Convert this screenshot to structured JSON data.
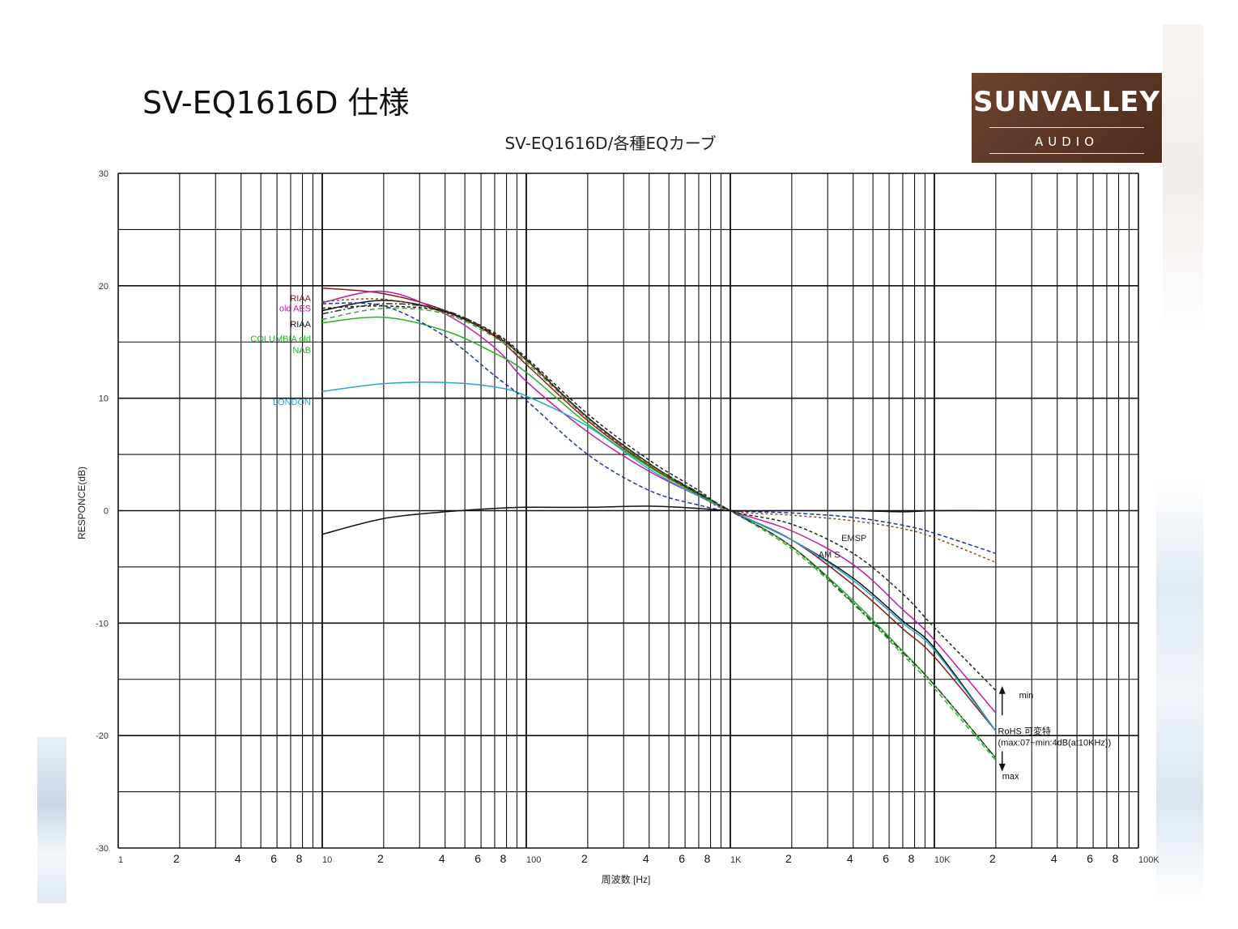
{
  "page_title": "SV-EQ1616D 仕様",
  "logo": {
    "main": "SUNVALLEY",
    "sub": "AUDIO"
  },
  "chart_data": {
    "type": "line",
    "title": "SV-EQ1616D/各種EQカーブ",
    "xlabel": "周波数 [Hz]",
    "ylabel": "RESPONCE(dB)",
    "xscale": "log",
    "xlim": [
      1,
      100000
    ],
    "ylim": [
      -30,
      30
    ],
    "grid": true,
    "y_ticks": [
      "30",
      "20",
      "10",
      "0",
      "-10",
      "-20",
      "-30"
    ],
    "y_tick_values": [
      30,
      20,
      10,
      0,
      -10,
      -20,
      -30
    ],
    "x_ticks": [
      {
        "v": 1,
        "label": "1",
        "dec": true
      },
      {
        "v": 2,
        "label": "2",
        "dec": false
      },
      {
        "v": 4,
        "label": "4",
        "dec": false
      },
      {
        "v": 6,
        "label": "6",
        "dec": false
      },
      {
        "v": 8,
        "label": "8",
        "dec": false
      },
      {
        "v": 10,
        "label": "10",
        "dec": true
      },
      {
        "v": 20,
        "label": "2",
        "dec": false
      },
      {
        "v": 40,
        "label": "4",
        "dec": false
      },
      {
        "v": 60,
        "label": "6",
        "dec": false
      },
      {
        "v": 80,
        "label": "8",
        "dec": false
      },
      {
        "v": 100,
        "label": "100",
        "dec": true
      },
      {
        "v": 200,
        "label": "2",
        "dec": false
      },
      {
        "v": 400,
        "label": "4",
        "dec": false
      },
      {
        "v": 600,
        "label": "6",
        "dec": false
      },
      {
        "v": 800,
        "label": "8",
        "dec": false
      },
      {
        "v": 1000,
        "label": "1K",
        "dec": true
      },
      {
        "v": 2000,
        "label": "2",
        "dec": false
      },
      {
        "v": 4000,
        "label": "4",
        "dec": false
      },
      {
        "v": 6000,
        "label": "6",
        "dec": false
      },
      {
        "v": 8000,
        "label": "8",
        "dec": false
      },
      {
        "v": 10000,
        "label": "10K",
        "dec": true
      },
      {
        "v": 20000,
        "label": "2",
        "dec": false
      },
      {
        "v": 40000,
        "label": "4",
        "dec": false
      },
      {
        "v": 60000,
        "label": "6",
        "dec": false
      },
      {
        "v": 80000,
        "label": "8",
        "dec": false
      },
      {
        "v": 100000,
        "label": "100K",
        "dec": true
      }
    ],
    "series": [
      {
        "name": "RIAA",
        "color": "#8b1a1a",
        "dash": "",
        "x": [
          10,
          20,
          40,
          70,
          100,
          200,
          400,
          700,
          1000,
          2000,
          4000,
          7000,
          10000,
          20000
        ],
        "y": [
          19.8,
          19.3,
          17.8,
          15.5,
          13.0,
          8.0,
          4.0,
          1.5,
          0.0,
          -2.6,
          -6.6,
          -10.5,
          -13.0,
          -19.6
        ]
      },
      {
        "name": "old AES",
        "color": "#c01ca0",
        "dash": "",
        "x": [
          10,
          20,
          40,
          70,
          100,
          200,
          400,
          700,
          1000,
          2000,
          4000,
          7000,
          10000,
          20000
        ],
        "y": [
          18.5,
          19.5,
          17.5,
          14.5,
          11.5,
          7.0,
          3.5,
          1.3,
          0.0,
          -1.8,
          -4.8,
          -8.8,
          -11.5,
          -18.0
        ]
      },
      {
        "name": "RIAA",
        "color": "#111111",
        "dash": "",
        "x": [
          10,
          20,
          40,
          70,
          100,
          200,
          400,
          700,
          1000,
          2000,
          4000,
          7000,
          10000,
          20000
        ],
        "y": [
          17.8,
          18.7,
          17.7,
          15.6,
          13.4,
          8.3,
          4.2,
          1.5,
          0.0,
          -2.6,
          -6.0,
          -9.8,
          -12.2,
          -19.6
        ]
      },
      {
        "name": "COLUMBIA old",
        "color": "#22b222",
        "dash": "",
        "x": [
          10,
          20,
          40,
          70,
          100,
          200,
          400,
          700,
          1000,
          2000,
          4000,
          7000,
          10000,
          20000
        ],
        "y": [
          16.7,
          17.2,
          16.0,
          14.0,
          12.3,
          7.7,
          3.9,
          1.4,
          0.0,
          -3.2,
          -8.0,
          -12.5,
          -15.5,
          -22.0
        ]
      },
      {
        "name": "NAB",
        "color": "#3aa83a",
        "dash": "6 4",
        "x": [
          10,
          20,
          40,
          70,
          100,
          200,
          400,
          700,
          1000,
          2000,
          4000,
          7000,
          10000,
          20000
        ],
        "y": [
          17.0,
          18.0,
          17.5,
          15.4,
          13.2,
          8.2,
          4.1,
          1.6,
          0.0,
          -3.4,
          -8.3,
          -12.8,
          -15.8,
          -22.2
        ]
      },
      {
        "name": "LONDON",
        "color": "#2aa4cc",
        "dash": "",
        "x": [
          10,
          20,
          40,
          70,
          100,
          200,
          400,
          700,
          1000,
          2000,
          4000,
          7000,
          10000,
          20000
        ],
        "y": [
          10.6,
          11.3,
          11.4,
          11.0,
          10.2,
          7.5,
          3.7,
          1.3,
          0.0,
          -2.6,
          -6.2,
          -10.0,
          -12.4,
          -19.6
        ]
      },
      {
        "name": "",
        "color": "#2233aa",
        "dash": "5 3",
        "x": [
          10,
          20,
          40,
          70,
          100,
          200,
          400,
          700,
          1000,
          2000,
          4000,
          7000,
          10000,
          20000
        ],
        "y": [
          18.4,
          18.2,
          15.5,
          12.0,
          9.8,
          5.0,
          1.8,
          0.5,
          0.0,
          -0.2,
          -0.6,
          -1.3,
          -2.0,
          -3.8
        ]
      },
      {
        "name": "",
        "color": "#8b4a1a",
        "dash": "3 3",
        "x": [
          10,
          20,
          40,
          70,
          100,
          200,
          400,
          700,
          1000,
          2000,
          4000,
          7000,
          10000,
          20000
        ],
        "y": [
          18.6,
          18.8,
          17.6,
          15.6,
          13.4,
          8.2,
          4.0,
          1.4,
          0.0,
          -0.4,
          -0.9,
          -1.6,
          -2.4,
          -4.6
        ]
      },
      {
        "name": "",
        "color": "#222222",
        "dash": "4 3",
        "x": [
          10,
          20,
          40,
          70,
          100,
          200,
          400,
          700,
          1000,
          2000,
          4000,
          7000,
          10000,
          20000
        ],
        "y": [
          18.0,
          18.2,
          17.7,
          15.8,
          13.6,
          8.6,
          4.5,
          1.8,
          0.0,
          -1.2,
          -3.8,
          -7.4,
          -10.4,
          -16.0
        ]
      },
      {
        "name": "",
        "color": "#333333",
        "dash": "8 3 2 3",
        "x": [
          10,
          20,
          40,
          70,
          100,
          200,
          400,
          700,
          1000,
          2000,
          4000,
          7000,
          10000,
          20000
        ],
        "y": [
          17.5,
          18.4,
          17.8,
          15.7,
          13.5,
          8.3,
          4.2,
          1.6,
          0.0,
          -3.2,
          -8.2,
          -12.6,
          -15.5,
          -22.0
        ]
      },
      {
        "name": "",
        "color": "#111111",
        "dash": "",
        "x": [
          10,
          20,
          40,
          70,
          100,
          200,
          400,
          700,
          1000,
          2000,
          4000,
          7000,
          10000,
          20000
        ],
        "y": [
          -2.1,
          -0.7,
          -0.1,
          0.2,
          0.3,
          0.3,
          0.4,
          0.2,
          0.0,
          0.0,
          0.0,
          -0.1,
          0.0,
          0.0
        ]
      }
    ],
    "labels": [
      {
        "text": "RIAA",
        "color": "#8b1a1a",
        "x": 8.0,
        "y": 18.9
      },
      {
        "text": "old AES",
        "color": "#c01ca0",
        "x": 8.0,
        "y": 18.0
      },
      {
        "text": "RIAA",
        "color": "#222222",
        "x": 8.0,
        "y": 16.6
      },
      {
        "text": "COLUMBIA old",
        "color": "#22b222",
        "x": 8.0,
        "y": 15.3
      },
      {
        "text": "NAB",
        "color": "#22b222",
        "x": 8.0,
        "y": 14.3
      },
      {
        "text": "LONDON",
        "color": "#2aa4cc",
        "x": 8.0,
        "y": 9.7
      },
      {
        "text": "EMSP",
        "color": "#222222",
        "x": 3500,
        "y": -2.4
      },
      {
        "text": "AM S",
        "color": "#222222",
        "x": 2700,
        "y": -3.9
      },
      {
        "text": "min",
        "color": "#111111",
        "x": 26000,
        "y": -16.4
      },
      {
        "text": "RoHS 可変特",
        "color": "#111111",
        "x": 20500,
        "y": -19.6
      },
      {
        "text": "(max:07~min:4dB(at10KHz))",
        "color": "#111111",
        "x": 20500,
        "y": -20.6
      },
      {
        "text": "max",
        "color": "#111111",
        "x": 21500,
        "y": -23.6
      }
    ]
  }
}
